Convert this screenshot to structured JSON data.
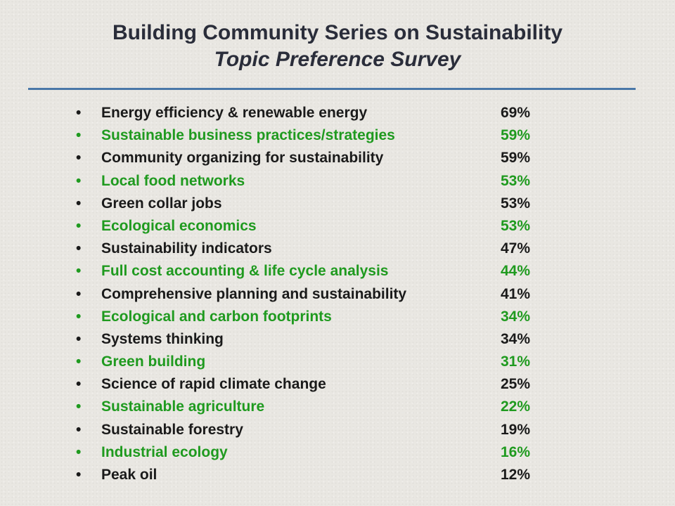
{
  "title": {
    "line1": "Building Community Series on Sustainability",
    "line2": "Topic Preference Survey"
  },
  "colors": {
    "title": "#2a2d3a",
    "divider": "#4a78a8",
    "dark_text": "#1a1a1a",
    "green_text": "#1f9a1f",
    "background": "#e9e7e2"
  },
  "bullet_char": "•",
  "topics": [
    {
      "label": "Energy efficiency & renewable energy",
      "percent": "69%",
      "color": "dark"
    },
    {
      "label": "Sustainable business practices/strategies",
      "percent": "59%",
      "color": "green"
    },
    {
      "label": "Community organizing for sustainability",
      "percent": "59%",
      "color": "dark"
    },
    {
      "label": "Local food networks",
      "percent": "53%",
      "color": "green"
    },
    {
      "label": "Green collar jobs",
      "percent": "53%",
      "color": "dark"
    },
    {
      "label": "Ecological economics",
      "percent": "53%",
      "color": "green"
    },
    {
      "label": "Sustainability indicators",
      "percent": "47%",
      "color": "dark"
    },
    {
      "label": "Full cost accounting & life cycle analysis",
      "percent": "44%",
      "color": "green"
    },
    {
      "label": "Comprehensive planning and sustainability",
      "percent": "41%",
      "color": "dark"
    },
    {
      "label": "Ecological and carbon footprints",
      "percent": "34%",
      "color": "green"
    },
    {
      "label": "Systems thinking",
      "percent": "34%",
      "color": "dark"
    },
    {
      "label": "Green building",
      "percent": "31%",
      "color": "green"
    },
    {
      "label": "Science of rapid climate change",
      "percent": "25%",
      "color": "dark"
    },
    {
      "label": "Sustainable agriculture",
      "percent": "22%",
      "color": "green"
    },
    {
      "label": "Sustainable forestry",
      "percent": "19%",
      "color": "dark"
    },
    {
      "label": "Industrial ecology",
      "percent": "16%",
      "color": "green"
    },
    {
      "label": "Peak oil",
      "percent": "12%",
      "color": "dark"
    }
  ]
}
